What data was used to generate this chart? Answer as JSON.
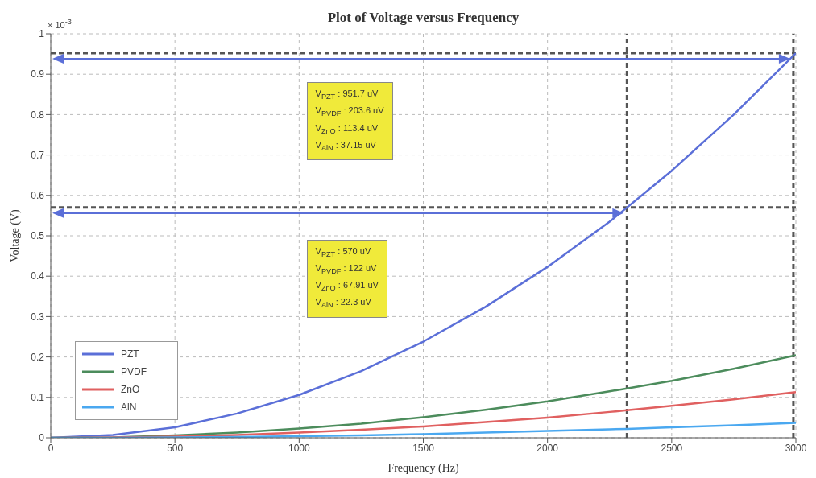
{
  "chart_data": {
    "type": "line",
    "title": "Plot of Voltage versus Frequency",
    "xlabel": "Frequency (Hz)",
    "ylabel": "Voltage (V)",
    "x": [
      0,
      250,
      500,
      750,
      1000,
      1250,
      1500,
      1750,
      2000,
      2250,
      2320,
      2500,
      2750,
      3000
    ],
    "series": [
      {
        "name": "PZT",
        "color": "#5b6fd8",
        "values": [
          0,
          0.007,
          0.026,
          0.06,
          0.106,
          0.165,
          0.238,
          0.324,
          0.423,
          0.535,
          0.57,
          0.661,
          0.8,
          0.952
        ]
      },
      {
        "name": "PVDF",
        "color": "#4c8c5c",
        "values": [
          0,
          0.001,
          0.006,
          0.013,
          0.023,
          0.035,
          0.051,
          0.069,
          0.09,
          0.115,
          0.122,
          0.141,
          0.171,
          0.204
        ]
      },
      {
        "name": "ZnO",
        "color": "#e06060",
        "values": [
          0,
          0.001,
          0.003,
          0.007,
          0.013,
          0.02,
          0.028,
          0.039,
          0.05,
          0.064,
          0.068,
          0.079,
          0.095,
          0.113
        ]
      },
      {
        "name": "AlN",
        "color": "#4aa8f0",
        "values": [
          0,
          0,
          0.001,
          0.002,
          0.004,
          0.006,
          0.009,
          0.013,
          0.017,
          0.021,
          0.022,
          0.026,
          0.031,
          0.037
        ]
      }
    ],
    "xlim": [
      0,
      3000
    ],
    "xticks": [
      0,
      500,
      1000,
      1500,
      2000,
      2500,
      3000
    ],
    "ylim": [
      0,
      1
    ],
    "yticks": [
      0,
      0.1,
      0.2,
      0.3,
      0.4,
      0.5,
      0.6,
      0.7,
      0.8,
      0.9,
      1
    ],
    "ref_lines": [
      {
        "axis": "y",
        "value": 0.952,
        "color": "#555555",
        "line_style": "dashed"
      },
      {
        "axis": "y",
        "value": 0.57,
        "color": "#555555",
        "line_style": "dashed"
      },
      {
        "axis": "x",
        "value": 2990,
        "color": "#555555",
        "line_style": "dashed"
      },
      {
        "axis": "x",
        "value": 2320,
        "color": "#555555",
        "line_style": "dashed"
      }
    ],
    "annotations": [
      "× 10$^{-3}$",
      "V$_{PZT}$ : 951.7 uV",
      "V$_{PVDF}$ : 203.6 uV",
      "V$_{ZnO}$ : 113.4 uV",
      "V$_{AlN}$ : 37.15 uV",
      "V$_{PZT}$ : 570 uV",
      "V$_{PVDF}$ : 122 uV",
      "V$_{ZnO}$ : 67.91 uV",
      "V$_{AlN}$ : 22.3 uV"
    ],
    "grid": true,
    "legend": "bottom left",
    "marker": "none",
    "line_style": "solid"
  }
}
